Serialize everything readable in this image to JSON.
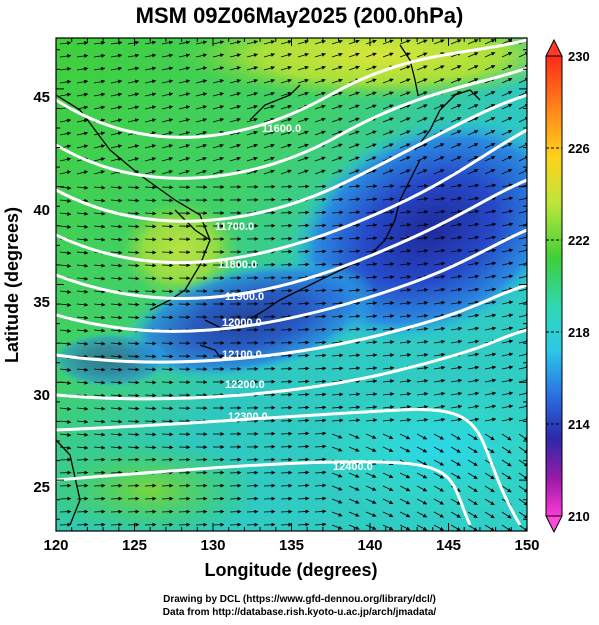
{
  "title": "MSM 09Z06May2025 (200.0hPa)",
  "map": {
    "xlabel": "Longitude (degrees)",
    "ylabel": "Latitude  (degrees)",
    "x_ticks": [
      "120",
      "125",
      "130",
      "135",
      "140",
      "145",
      "150"
    ],
    "y_ticks": [
      "25",
      "30",
      "35",
      "40",
      "45"
    ],
    "x_range": [
      120,
      150
    ],
    "y_range": [
      22.4,
      47.6
    ],
    "contour_labels": [
      "12000.0",
      "12100.0",
      "12200.0",
      "12300.0",
      "12400.0",
      "11900.0",
      "11800.0",
      "11700.0",
      "11600.0"
    ]
  },
  "colorbar": {
    "labels": [
      "230",
      "226",
      "222",
      "218",
      "214",
      "210"
    ],
    "range": [
      210,
      230
    ]
  },
  "credits": {
    "line1": "Drawing by DCL (https://www.gfd-dennou.org/library/dcl/)",
    "line2": "Data from http://database.rish.kyoto-u.ac.jp/arch/jmadata/"
  },
  "colors": {
    "green": "#3fcf3a",
    "yellow_green": "#a8e03a",
    "cyan": "#2fd5c8",
    "blue": "#2a5ad8",
    "dark_blue": "#1f2fa8",
    "contour": "#ffffff",
    "vector": "#000000"
  }
}
